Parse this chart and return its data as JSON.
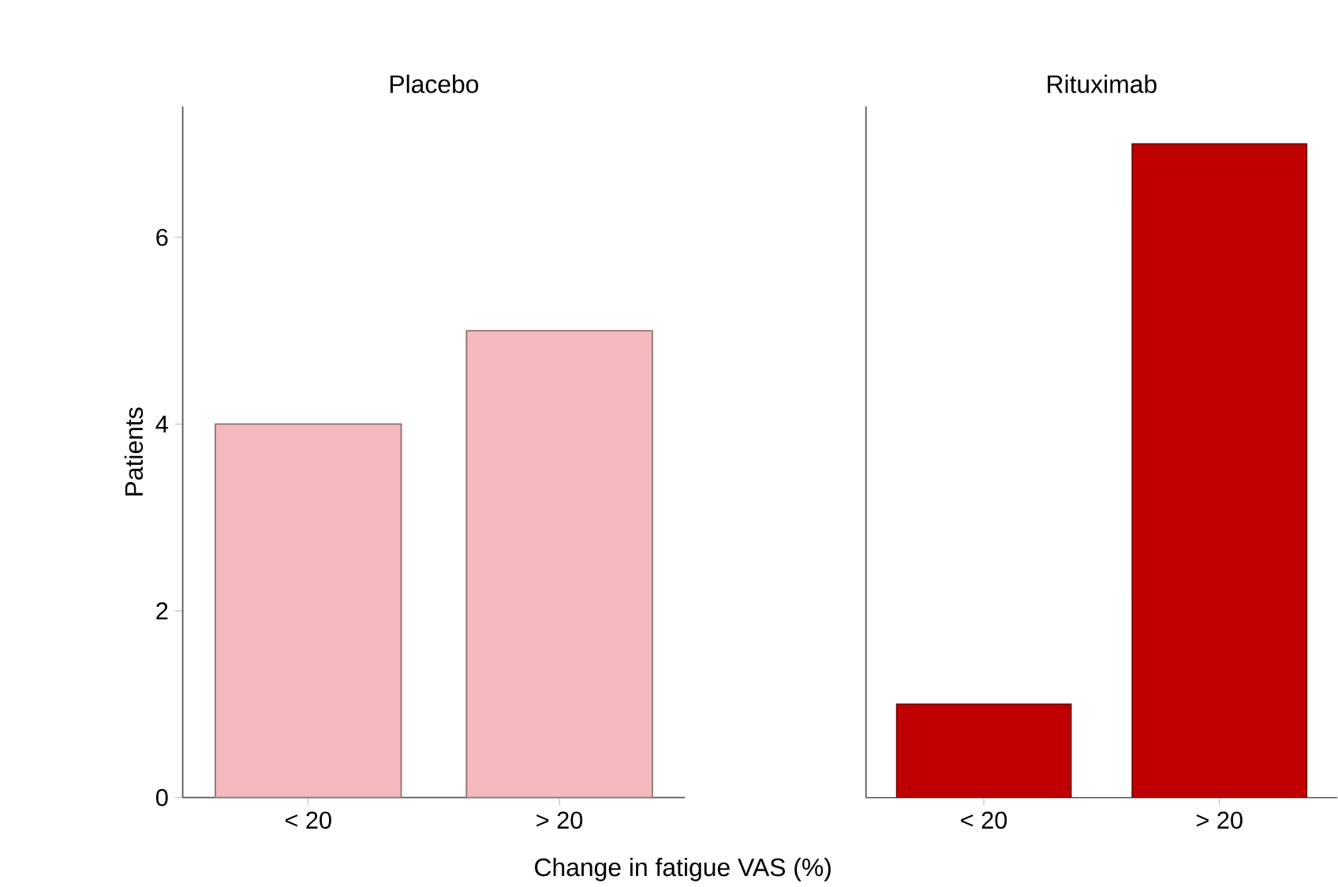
{
  "chart_data": [
    {
      "type": "bar",
      "title": "Placebo",
      "ylabel": "Patients",
      "xlabel": "Change in fatigue VAS (%)",
      "categories": [
        "< 20",
        "> 20"
      ],
      "values": [
        4,
        5
      ],
      "color": "#f4b9bd",
      "ylim": [
        0,
        7.4
      ],
      "yticks": [
        0,
        2,
        4,
        6
      ]
    },
    {
      "type": "bar",
      "title": "Rituximab",
      "categories": [
        "< 20",
        "> 20"
      ],
      "values": [
        1,
        7
      ],
      "color": "#c00000",
      "ylim": [
        0,
        7.4
      ],
      "tick_labels": "x"
    }
  ]
}
